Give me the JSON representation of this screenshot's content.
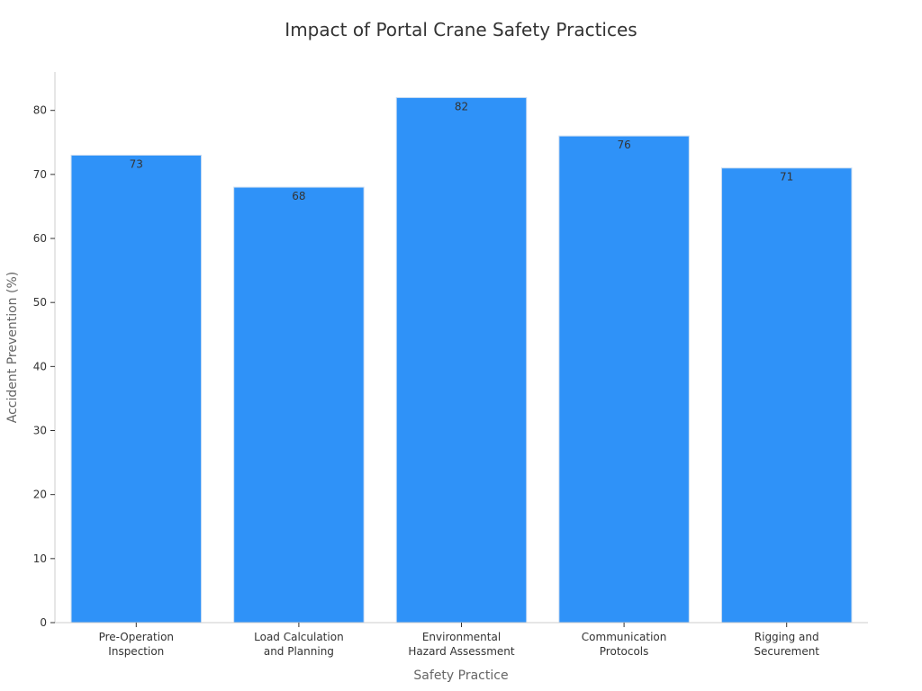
{
  "chart_data": {
    "type": "bar",
    "title": "Impact of Portal Crane Safety Practices",
    "xlabel": "Safety Practice",
    "ylabel": "Accident Prevention (%)",
    "categories": [
      [
        "Pre-Operation",
        "Inspection"
      ],
      [
        "Load Calculation",
        "and Planning"
      ],
      [
        "Environmental",
        "Hazard Assessment"
      ],
      [
        "Communication",
        "Protocols"
      ],
      [
        "Rigging and",
        "Securement"
      ]
    ],
    "values": [
      73,
      68,
      82,
      76,
      71
    ],
    "data_labels": [
      "73",
      "68",
      "82",
      "76",
      "71"
    ],
    "ylim": [
      0,
      86
    ],
    "yticks": [
      0,
      10,
      20,
      30,
      40,
      50,
      60,
      70,
      80
    ],
    "ytick_labels": [
      "0",
      "10",
      "20",
      "30",
      "40",
      "50",
      "60",
      "70",
      "80"
    ],
    "grid": false,
    "legend": "none",
    "colors": {
      "bar_fill": "#2f92f8",
      "bar_edge": "#c8dcf2",
      "axis": "#cccccc",
      "text": "#333333",
      "axis_label": "#666666"
    }
  }
}
